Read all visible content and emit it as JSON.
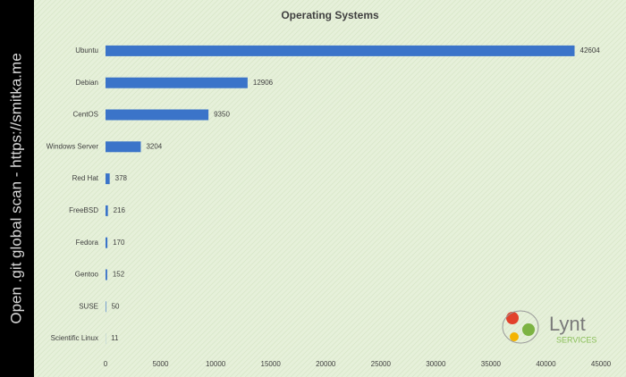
{
  "side_text": "Open .git global scan - https://smitka.me",
  "logo": {
    "name": "Lynt",
    "tagline": "SERVICES"
  },
  "chart_data": {
    "type": "bar",
    "orientation": "horizontal",
    "title": "Operating Systems",
    "categories": [
      "Ubuntu",
      "Debian",
      "CentOS",
      "Windows Server",
      "Red Hat",
      "FreeBSD",
      "Fedora",
      "Gentoo",
      "SUSE",
      "Scientific Linux"
    ],
    "values": [
      42604,
      12906,
      9350,
      3204,
      378,
      216,
      170,
      152,
      50,
      11
    ],
    "color": "#3b74c9",
    "xlim": [
      0,
      45000
    ],
    "xticks": [
      0,
      5000,
      10000,
      15000,
      20000,
      25000,
      30000,
      35000,
      40000,
      45000
    ],
    "grid": false
  }
}
